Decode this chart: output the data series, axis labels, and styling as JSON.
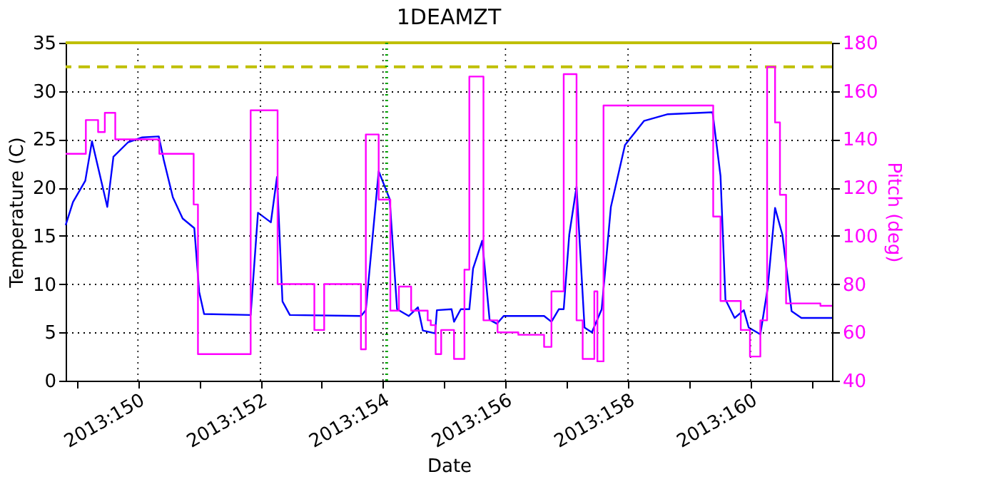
{
  "chart_data": {
    "type": "line",
    "title": "1DEAMZT",
    "xlabel": "Date",
    "ylabel": "Temperature (C)",
    "y2label": "Pitch (deg)",
    "xlim": [
      "2013-05-28T19:41",
      "2013-06-10T07:55"
    ],
    "xticks": [
      {
        "value": "2013-05-29",
        "label": null
      },
      {
        "value": "2013-05-30",
        "label": "2013:150"
      },
      {
        "value": "2013-05-31",
        "label": null
      },
      {
        "value": "2013-06-01",
        "label": "2013:152"
      },
      {
        "value": "2013-06-02",
        "label": null
      },
      {
        "value": "2013-06-03",
        "label": "2013:154"
      },
      {
        "value": "2013-06-04",
        "label": null
      },
      {
        "value": "2013-06-05",
        "label": "2013:156"
      },
      {
        "value": "2013-06-06",
        "label": null
      },
      {
        "value": "2013-06-07",
        "label": "2013:158"
      },
      {
        "value": "2013-06-08",
        "label": null
      },
      {
        "value": "2013-06-09",
        "label": "2013:160"
      },
      {
        "value": "2013-06-10",
        "label": null
      }
    ],
    "ylim": [
      0,
      35
    ],
    "yticks": [
      0,
      5,
      10,
      15,
      20,
      25,
      30,
      35
    ],
    "y2lim": [
      40,
      180
    ],
    "y2ticks": [
      40,
      60,
      80,
      100,
      120,
      140,
      160,
      180
    ],
    "grid": true,
    "legend": false,
    "marker": "none",
    "line_style": "solid",
    "series": [
      {
        "color": "#0000ff",
        "x": [
          "2013-05-28T19:41",
          "2013-05-28T22:34",
          "2013-05-29T03:22",
          "2013-05-29T06:00",
          "2013-05-29T12:00",
          "2013-05-29T14:24",
          "2013-05-29T20:10",
          "2013-05-30T01:41",
          "2013-05-30T08:10",
          "2013-05-30T10:05",
          "2013-05-30T13:41",
          "2013-05-30T17:31",
          "2013-05-30T22:05",
          "2013-05-31T00:00",
          "2013-05-31T01:55",
          "2013-05-31T20:10",
          "2013-05-31T23:02",
          "2013-06-01T04:05",
          "2013-06-01T06:29",
          "2013-06-01T08:38",
          "2013-06-01T11:31",
          "2013-06-02T15:22",
          "2013-06-02T17:17",
          "2013-06-02T22:19",
          "2013-06-03T02:38",
          "2013-06-03T05:31",
          "2013-06-03T10:05",
          "2013-06-03T13:41",
          "2013-06-03T15:36",
          "2013-06-03T20:24",
          "2013-06-03T21:07",
          "2013-06-04T02:53",
          "2013-06-04T03:50",
          "2013-06-04T06:29",
          "2013-06-04T09:50",
          "2013-06-04T11:17",
          "2013-06-04T14:53",
          "2013-06-04T17:46",
          "2013-06-04T20:38",
          "2013-06-04T23:17",
          "2013-06-05T15:07",
          "2013-06-05T18:00",
          "2013-06-05T20:53",
          "2013-06-05T22:48",
          "2013-06-06T00:58",
          "2013-06-06T03:50",
          "2013-06-06T06:58",
          "2013-06-06T09:50",
          "2013-06-06T13:41",
          "2013-06-06T17:17",
          "2013-06-06T22:48",
          "2013-06-07T06:14",
          "2013-06-07T15:36",
          "2013-06-08T09:07",
          "2013-06-08T12:14",
          "2013-06-08T14:10",
          "2013-06-08T17:46",
          "2013-06-08T21:22",
          "2013-06-08T23:17",
          "2013-06-09T03:50",
          "2013-06-09T06:43",
          "2013-06-09T09:36",
          "2013-06-09T12:29",
          "2013-06-09T16:05",
          "2013-06-09T19:55",
          "2013-06-10T07:55"
        ],
        "values": [
          16.1,
          18.5,
          20.7,
          24.8,
          18.0,
          23.2,
          24.7,
          25.2,
          25.3,
          22.9,
          19.0,
          16.8,
          15.8,
          9.2,
          6.9,
          6.8,
          17.4,
          16.4,
          21.1,
          8.2,
          6.8,
          6.7,
          7.3,
          21.7,
          18.8,
          7.4,
          6.7,
          7.6,
          5.2,
          4.9,
          7.3,
          7.4,
          6.1,
          7.4,
          7.4,
          11.6,
          14.5,
          6.3,
          5.9,
          6.7,
          6.7,
          6.1,
          7.4,
          7.4,
          15.1,
          20.1,
          5.5,
          5.0,
          7.4,
          18.0,
          24.4,
          26.9,
          27.6,
          27.8,
          21.2,
          8.4,
          6.5,
          7.3,
          5.5,
          4.8,
          9.6,
          17.9,
          15.1,
          7.2,
          6.5,
          6.5
        ]
      },
      {
        "color": "#ff00ff",
        "type": "step",
        "axis": "y2",
        "x": [
          "2013-05-28T19:41",
          "2013-05-29T03:36",
          "2013-05-29T08:24",
          "2013-05-29T11:02",
          "2013-05-29T15:07",
          "2013-05-30T08:24",
          "2013-05-30T21:50",
          "2013-05-30T23:31",
          "2013-05-31T20:10",
          "2013-06-01T06:43",
          "2013-06-01T21:07",
          "2013-06-02T00:58",
          "2013-06-02T15:22",
          "2013-06-02T17:17",
          "2013-06-02T22:19",
          "2013-06-03T02:53",
          "2013-06-03T06:14",
          "2013-06-03T11:02",
          "2013-06-03T17:31",
          "2013-06-03T18:43",
          "2013-06-03T20:38",
          "2013-06-03T22:48",
          "2013-06-04T03:50",
          "2013-06-04T07:55",
          "2013-06-04T09:50",
          "2013-06-04T15:22",
          "2013-06-04T20:53",
          "2013-06-05T05:02",
          "2013-06-05T15:07",
          "2013-06-05T18:00",
          "2013-06-05T22:48",
          "2013-06-06T03:50",
          "2013-06-06T06:14",
          "2013-06-06T10:48",
          "2013-06-06T12:00",
          "2013-06-06T14:24",
          "2013-06-08T09:22",
          "2013-06-08T12:14",
          "2013-06-08T20:10",
          "2013-06-08T23:46",
          "2013-06-09T03:50",
          "2013-06-09T06:29",
          "2013-06-09T09:36",
          "2013-06-09T11:31",
          "2013-06-09T13:55",
          "2013-06-10T03:22",
          "2013-06-10T07:55"
        ],
        "values": [
          134,
          148,
          143,
          151,
          140,
          134,
          113,
          51,
          152,
          80,
          61,
          80,
          53,
          142,
          115,
          69,
          79,
          69,
          65,
          63,
          51,
          61,
          49,
          86,
          166,
          65,
          60,
          59,
          54,
          77,
          167,
          65,
          49,
          77,
          48,
          154,
          108,
          73,
          61,
          50,
          65,
          170,
          147,
          117,
          72,
          71,
          71
        ]
      }
    ],
    "ref_lines": [
      {
        "axis": "y",
        "value": 32.5,
        "color": "#bfbf00",
        "line_style": "dashed"
      },
      {
        "axis": "y",
        "value": 35,
        "color": "#bfbf00",
        "line_style": "solid"
      },
      {
        "axis": "x",
        "value": "2013-06-03T01:26",
        "color": "#00a000",
        "line_style": "dotted"
      }
    ]
  }
}
